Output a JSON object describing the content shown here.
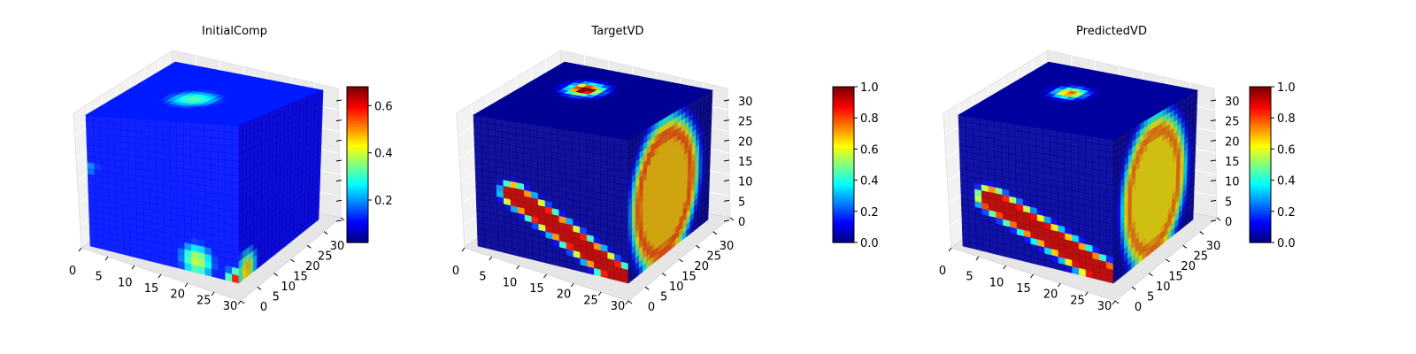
{
  "figure": {
    "background": "#ffffff",
    "colormap": "jet",
    "colormap_stops": [
      "#00007f",
      "#0000ff",
      "#007fff",
      "#00ffff",
      "#7fff7f",
      "#ffff00",
      "#ff7f00",
      "#ff0000",
      "#7f0000"
    ]
  },
  "chart_data": [
    {
      "type": "heatmap",
      "subtype": "3d-voxel-cube",
      "title": "InitialComp",
      "x_ticks": [
        "0",
        "5",
        "10",
        "15",
        "20",
        "25",
        "30"
      ],
      "y_ticks": [
        "0",
        "5",
        "10",
        "15",
        "20",
        "25",
        "30"
      ],
      "z_ticks": [],
      "axis_ranges": {
        "x": [
          0,
          32
        ],
        "y": [
          0,
          32
        ],
        "z": [
          0,
          32
        ]
      },
      "colorbar": {
        "min": 0.02,
        "max": 0.68,
        "ticks": [
          "0.2",
          "0.4",
          "0.6"
        ],
        "tick_values": [
          0.2,
          0.4,
          0.6
        ]
      },
      "hotspots": [
        {
          "face": "top",
          "u": 0.45,
          "v": 0.55,
          "value": 0.33,
          "spread": 0.18
        },
        {
          "face": "front",
          "u": 0.72,
          "v": 0.92,
          "value": 0.42,
          "spread": 0.12
        },
        {
          "face": "front",
          "u": 0.98,
          "v": 0.98,
          "value": 0.62,
          "spread": 0.06
        },
        {
          "face": "side",
          "u": 0.1,
          "v": 0.95,
          "value": 0.6,
          "spread": 0.12
        },
        {
          "face": "front",
          "u": 0.02,
          "v": 0.4,
          "value": 0.2,
          "spread": 0.08
        }
      ],
      "base_value": 0.12
    },
    {
      "type": "heatmap",
      "subtype": "3d-voxel-cube",
      "title": "TargetVD",
      "x_ticks": [
        "0",
        "5",
        "10",
        "15",
        "20",
        "25",
        "30"
      ],
      "y_ticks": [
        "0",
        "5",
        "10",
        "15",
        "20",
        "25",
        "30"
      ],
      "z_ticks": [
        "0",
        "5",
        "10",
        "15",
        "20",
        "25",
        "30"
      ],
      "axis_ranges": {
        "x": [
          0,
          32
        ],
        "y": [
          0,
          32
        ],
        "z": [
          0,
          32
        ]
      },
      "colorbar": {
        "min": 0.0,
        "max": 1.0,
        "ticks": [
          "0.0",
          "0.2",
          "0.4",
          "0.6",
          "0.8",
          "1.0"
        ],
        "tick_values": [
          0.0,
          0.2,
          0.4,
          0.6,
          0.8,
          1.0
        ]
      },
      "hotspots": [
        {
          "face": "top",
          "u": 0.35,
          "v": 0.35,
          "value": 0.95,
          "spread": 0.1,
          "ring": true
        },
        {
          "face": "front",
          "shape": "diagonal-band",
          "value": 1.0,
          "from": [
            0.25,
            0.55
          ],
          "to": [
            1.0,
            1.0
          ],
          "width": 0.09
        },
        {
          "face": "side",
          "shape": "ellipse-ring",
          "cu": 0.45,
          "cv": 0.55,
          "ru": 0.32,
          "rv": 0.42,
          "value": 1.0,
          "width": 0.1
        }
      ],
      "base_value": 0.02
    },
    {
      "type": "heatmap",
      "subtype": "3d-voxel-cube",
      "title": "PredictedVD",
      "x_ticks": [
        "0",
        "5",
        "10",
        "15",
        "20",
        "25",
        "30"
      ],
      "y_ticks": [
        "0",
        "5",
        "10",
        "15",
        "20",
        "25",
        "30"
      ],
      "z_ticks": [
        "0",
        "5",
        "10",
        "15",
        "20",
        "25",
        "30"
      ],
      "axis_ranges": {
        "x": [
          0,
          32
        ],
        "y": [
          0,
          32
        ],
        "z": [
          0,
          32
        ]
      },
      "colorbar": {
        "min": 0.0,
        "max": 1.0,
        "ticks": [
          "0.0",
          "0.2",
          "0.4",
          "0.6",
          "0.8",
          "1.0"
        ],
        "tick_values": [
          0.0,
          0.2,
          0.4,
          0.6,
          0.8,
          1.0
        ]
      },
      "hotspots": [
        {
          "face": "top",
          "u": 0.38,
          "v": 0.4,
          "value": 0.8,
          "spread": 0.09
        },
        {
          "face": "front",
          "shape": "diagonal-band",
          "value": 1.0,
          "from": [
            0.2,
            0.6
          ],
          "to": [
            1.0,
            0.98
          ],
          "width": 0.1
        },
        {
          "face": "side",
          "shape": "ellipse-ring",
          "cu": 0.5,
          "cv": 0.55,
          "ru": 0.3,
          "rv": 0.42,
          "value": 0.95,
          "width": 0.1
        }
      ],
      "base_value": 0.03
    }
  ]
}
